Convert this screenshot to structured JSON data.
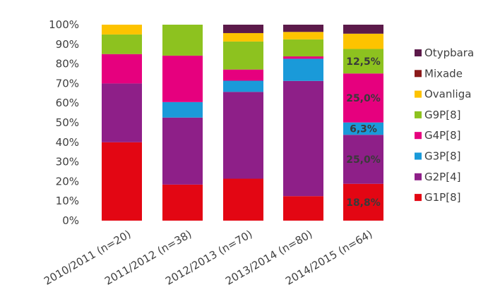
{
  "chart_data": {
    "type": "bar",
    "stacked": true,
    "categories": [
      "2010/2011 (n=20)",
      "2011/2012 (n=38)",
      "2012/2013 (n=70)",
      "2013/2014 (n=80)",
      "2014/2015 (n=64)"
    ],
    "series": [
      {
        "name": "G1P[8]",
        "color": "#e30613",
        "values": [
          40,
          18.4,
          21.4,
          12.5,
          18.8
        ]
      },
      {
        "name": "G2P[4]",
        "color": "#8e1f88",
        "values": [
          30,
          34.2,
          44.3,
          58.8,
          25.0
        ]
      },
      {
        "name": "G3P[8]",
        "color": "#1a9ad9",
        "values": [
          0,
          7.9,
          5.7,
          11.3,
          6.3
        ]
      },
      {
        "name": "G4P[8]",
        "color": "#e6007e",
        "values": [
          15,
          23.7,
          5.7,
          1.2,
          25.0
        ]
      },
      {
        "name": "G9P[8]",
        "color": "#8dc21f",
        "values": [
          10,
          15.8,
          14.3,
          8.7,
          12.5
        ]
      },
      {
        "name": "Ovanliga",
        "color": "#fdc300",
        "values": [
          5,
          0,
          4.3,
          3.8,
          7.8
        ]
      },
      {
        "name": "Mixade",
        "color": "#8b1a1a",
        "values": [
          0,
          0,
          0,
          0,
          0
        ]
      },
      {
        "name": "Otypbara",
        "color": "#5c1a4a",
        "values": [
          0,
          0,
          4.3,
          3.7,
          4.6
        ]
      }
    ],
    "data_labels": [
      {
        "category": "2014/2015 (n=64)",
        "series": "G1P[8]",
        "text": "18,8%"
      },
      {
        "category": "2014/2015 (n=64)",
        "series": "G2P[4]",
        "text": "25,0%"
      },
      {
        "category": "2014/2015 (n=64)",
        "series": "G3P[8]",
        "text": "6,3%"
      },
      {
        "category": "2014/2015 (n=64)",
        "series": "G4P[8]",
        "text": "25,0%"
      },
      {
        "category": "2014/2015 (n=64)",
        "series": "G9P[8]",
        "text": "12,5%"
      }
    ],
    "yticks": [
      "0%",
      "10%",
      "20%",
      "30%",
      "40%",
      "50%",
      "60%",
      "70%",
      "80%",
      "90%",
      "100%"
    ],
    "ylim": [
      0,
      100
    ],
    "legend_position": "right",
    "grid": false
  }
}
